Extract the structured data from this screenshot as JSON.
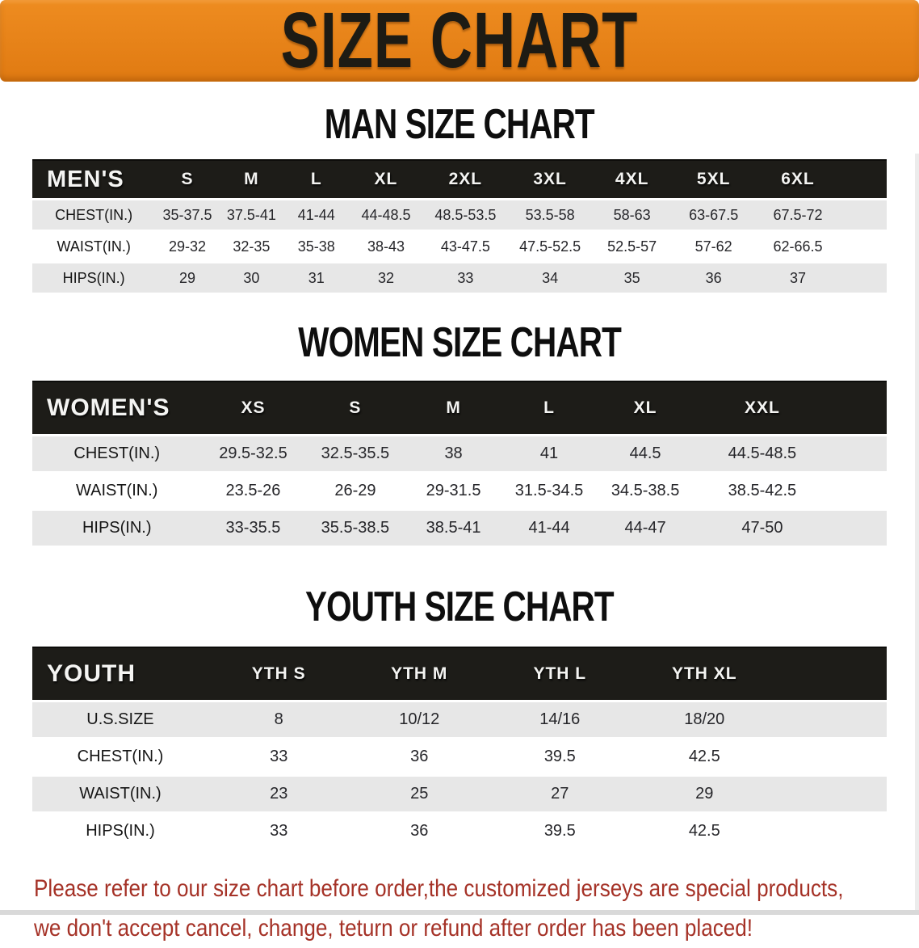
{
  "banner": {
    "title": "SIZE CHART"
  },
  "sections": [
    {
      "id": "men",
      "heading": "MAN SIZE CHART",
      "table": {
        "label": "MEN'S",
        "columns": [
          "S",
          "M",
          "L",
          "XL",
          "2XL",
          "3XL",
          "4XL",
          "5XL",
          "6XL"
        ],
        "rows": [
          {
            "label": "CHEST(IN.)",
            "values": [
              "35-37.5",
              "37.5-41",
              "41-44",
              "44-48.5",
              "48.5-53.5",
              "53.5-58",
              "58-63",
              "63-67.5",
              "67.5-72"
            ]
          },
          {
            "label": "WAIST(IN.)",
            "values": [
              "29-32",
              "32-35",
              "35-38",
              "38-43",
              "43-47.5",
              "47.5-52.5",
              "52.5-57",
              "57-62",
              "62-66.5"
            ]
          },
          {
            "label": "HIPS(IN.)",
            "values": [
              "29",
              "30",
              "31",
              "32",
              "33",
              "34",
              "35",
              "36",
              "37"
            ]
          }
        ]
      }
    },
    {
      "id": "women",
      "heading": "WOMEN SIZE CHART",
      "table": {
        "label": "WOMEN'S",
        "columns": [
          "XS",
          "S",
          "M",
          "L",
          "XL",
          "XXL"
        ],
        "rows": [
          {
            "label": "CHEST(IN.)",
            "values": [
              "29.5-32.5",
              "32.5-35.5",
              "38",
              "41",
              "44.5",
              "44.5-48.5"
            ]
          },
          {
            "label": "WAIST(IN.)",
            "values": [
              "23.5-26",
              "26-29",
              "29-31.5",
              "31.5-34.5",
              "34.5-38.5",
              "38.5-42.5"
            ]
          },
          {
            "label": "HIPS(IN.)",
            "values": [
              "33-35.5",
              "35.5-38.5",
              "38.5-41",
              "41-44",
              "44-47",
              "47-50"
            ]
          }
        ]
      }
    },
    {
      "id": "youth",
      "heading": "YOUTH SIZE CHART",
      "table": {
        "label": "YOUTH",
        "columns": [
          "YTH S",
          "YTH M",
          "YTH L",
          "YTH XL"
        ],
        "rows": [
          {
            "label": "U.S.SIZE",
            "values": [
              "8",
              "10/12",
              "14/16",
              "18/20"
            ]
          },
          {
            "label": "CHEST(IN.)",
            "values": [
              "33",
              "36",
              "39.5",
              "42.5"
            ]
          },
          {
            "label": "WAIST(IN.)",
            "values": [
              "23",
              "25",
              "27",
              "29"
            ]
          },
          {
            "label": "HIPS(IN.)",
            "values": [
              "33",
              "36",
              "39.5",
              "42.5"
            ]
          }
        ]
      }
    }
  ],
  "disclaimer": {
    "lines": [
      "Please refer to our size chart before order,the customized jerseys are special products,",
      "we don't accept cancel, change, teturn or refund after order has been placed!"
    ]
  },
  "colors": {
    "banner_orange": "#E8811B",
    "table_header_black": "#1D1C18",
    "row_stripe_gray": "#E7E7E7",
    "disclaimer_red": "#A53227"
  }
}
